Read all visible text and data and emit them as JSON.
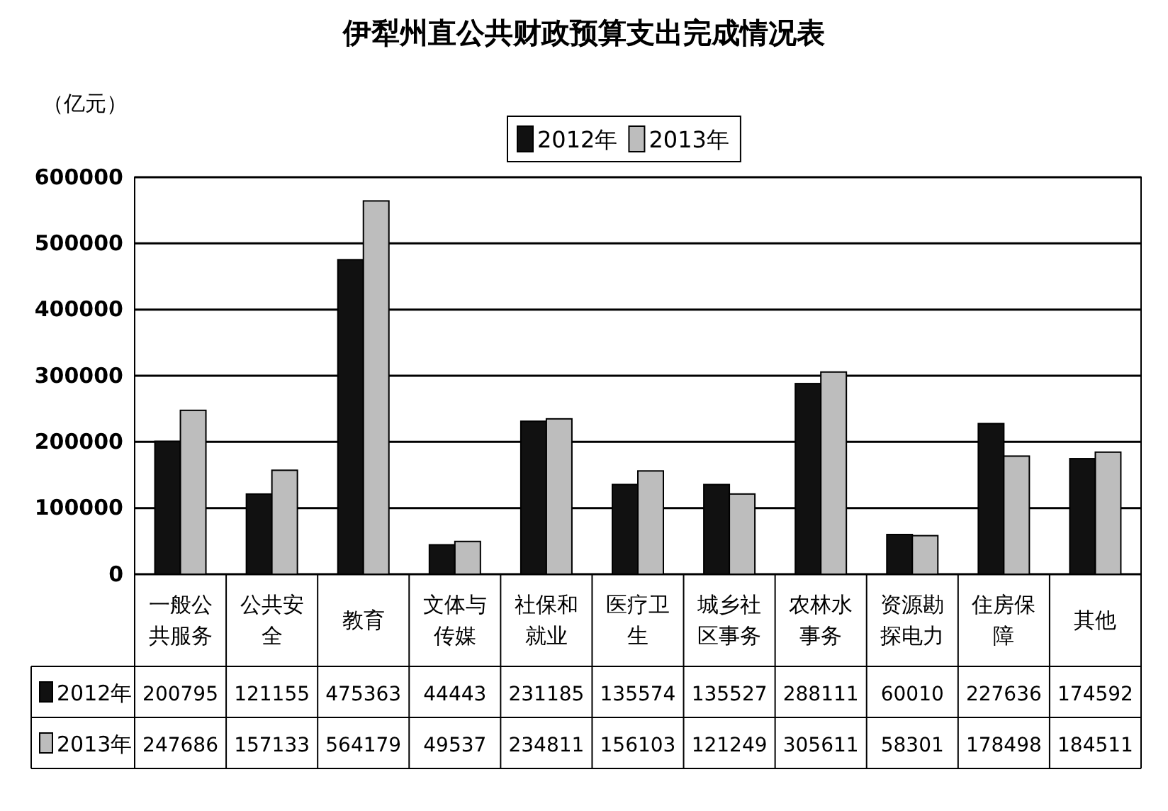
{
  "chart_data": {
    "type": "bar",
    "title": "伊犁州直公共财政预算支出完成情况表",
    "ylabel": "（亿元）",
    "categories": [
      "一般公共服务",
      "公共安全",
      "教育",
      "文体与传媒",
      "社保和就业",
      "医疗卫生",
      "城乡社区事务",
      "农林水事务",
      "资源勘探电力",
      "住房保障",
      "其他"
    ],
    "series": [
      {
        "name": "2012年",
        "color": "#111111",
        "values": [
          200795,
          121155,
          475363,
          44443,
          231185,
          135574,
          135527,
          288111,
          60010,
          227636,
          174592
        ]
      },
      {
        "name": "2013年",
        "color": "#bdbdbd",
        "values": [
          247686,
          157133,
          564179,
          49537,
          234811,
          156103,
          121249,
          305611,
          58301,
          178498,
          184511
        ]
      }
    ],
    "ylim": [
      0,
      600000
    ],
    "yticks": [
      0,
      100000,
      200000,
      300000,
      400000,
      500000,
      600000
    ],
    "grid": "y",
    "legend": "top",
    "data_labels": true
  }
}
